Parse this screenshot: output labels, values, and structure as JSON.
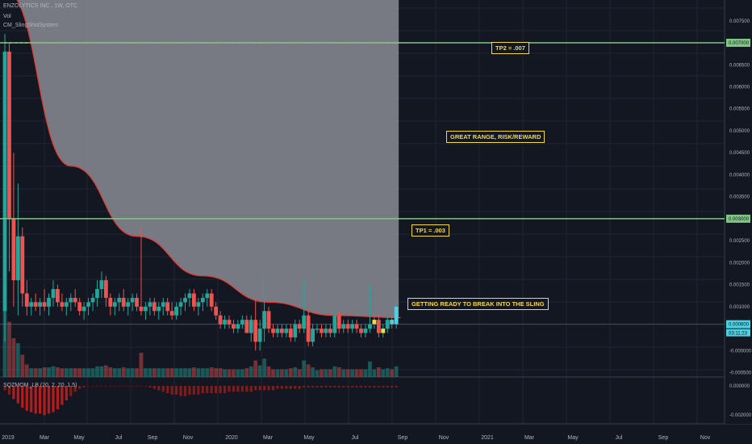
{
  "header": {
    "symbol_line": "ENZOLYTICS INC., 1W, OTC",
    "vol_label": "Vol",
    "indicator_label": "CM_SlingShotSystem",
    "momentum_label": "SQZMOM_LB (20, 2, 20, 1.5)"
  },
  "annotations": {
    "tp2": "TP2 = .007",
    "range": "GREAT RANGE, RISK/REWARD",
    "tp1": "TP1 = .003",
    "sling": "GETTING READY TO BREAK INTO THE SLING"
  },
  "price_axis": {
    "ticks": [
      "0.007500",
      "0.006500",
      "0.006000",
      "0.005500",
      "0.005000",
      "0.004500",
      "0.004000",
      "0.003500",
      "0.002500",
      "0.002000",
      "0.001500",
      "0.001000",
      "-0.000000",
      "-0.000500"
    ],
    "levels": [
      {
        "label": "0.007000",
        "color": "#81c784"
      },
      {
        "label": "0.003000",
        "color": "#81c784"
      },
      {
        "label": "0.000600",
        "color": "#4dd0e1"
      }
    ],
    "countdown": "03:11:23"
  },
  "momentum_axis": {
    "ticks": [
      "0.000000",
      "-0.002000"
    ]
  },
  "time_axis": {
    "labels": [
      "2019",
      "Mar",
      "May",
      "Jul",
      "Sep",
      "Nov",
      "2020",
      "Mar",
      "May",
      "Jul",
      "Sep",
      "Nov",
      "2021",
      "Mar",
      "May",
      "Jul",
      "Sep",
      "Nov"
    ]
  },
  "colors": {
    "background": "#131722",
    "up": "#26a69a",
    "down": "#ef5350",
    "level_line": "#81c784",
    "annotation": "#f5d942",
    "sling_fill": "#8a8c93",
    "ema_line": "#e53935"
  },
  "chart_data": {
    "type": "candlestick",
    "x_unit": "week",
    "ylim": [
      -0.0006,
      0.0079
    ],
    "levels": [
      0.007,
      0.003,
      0.0006
    ],
    "candles": [
      {
        "o": 0.0009,
        "h": 0.0072,
        "l": 0.0002,
        "c": 0.0068
      },
      {
        "o": 0.0068,
        "h": 0.007,
        "l": 0.0018,
        "c": 0.003
      },
      {
        "o": 0.003,
        "h": 0.0045,
        "l": 0.001,
        "c": 0.0016
      },
      {
        "o": 0.0016,
        "h": 0.0038,
        "l": 0.0008,
        "c": 0.0026
      },
      {
        "o": 0.0026,
        "h": 0.0028,
        "l": 0.001,
        "c": 0.0013
      },
      {
        "o": 0.0013,
        "h": 0.0016,
        "l": 0.0008,
        "c": 0.001
      },
      {
        "o": 0.001,
        "h": 0.0012,
        "l": 0.0008,
        "c": 0.0011
      },
      {
        "o": 0.0011,
        "h": 0.0013,
        "l": 0.0009,
        "c": 0.001
      },
      {
        "o": 0.001,
        "h": 0.0012,
        "l": 0.0008,
        "c": 0.0011
      },
      {
        "o": 0.0011,
        "h": 0.0014,
        "l": 0.0009,
        "c": 0.001
      },
      {
        "o": 0.001,
        "h": 0.0013,
        "l": 0.0008,
        "c": 0.0012
      },
      {
        "o": 0.0012,
        "h": 0.0016,
        "l": 0.001,
        "c": 0.0014
      },
      {
        "o": 0.0014,
        "h": 0.0015,
        "l": 0.001,
        "c": 0.0011
      },
      {
        "o": 0.0011,
        "h": 0.0013,
        "l": 0.0009,
        "c": 0.001
      },
      {
        "o": 0.001,
        "h": 0.0012,
        "l": 0.0008,
        "c": 0.0011
      },
      {
        "o": 0.0011,
        "h": 0.0013,
        "l": 0.0009,
        "c": 0.0012
      },
      {
        "o": 0.0012,
        "h": 0.0014,
        "l": 0.001,
        "c": 0.0011
      },
      {
        "o": 0.0011,
        "h": 0.0012,
        "l": 0.0008,
        "c": 0.0009
      },
      {
        "o": 0.0009,
        "h": 0.0011,
        "l": 0.0007,
        "c": 0.001
      },
      {
        "o": 0.001,
        "h": 0.0012,
        "l": 0.0008,
        "c": 0.0011
      },
      {
        "o": 0.0011,
        "h": 0.0013,
        "l": 0.0009,
        "c": 0.0012
      },
      {
        "o": 0.0012,
        "h": 0.0016,
        "l": 0.001,
        "c": 0.0014
      },
      {
        "o": 0.0014,
        "h": 0.0018,
        "l": 0.0012,
        "c": 0.0016
      },
      {
        "o": 0.0016,
        "h": 0.0017,
        "l": 0.001,
        "c": 0.0012
      },
      {
        "o": 0.0012,
        "h": 0.0013,
        "l": 0.0008,
        "c": 0.001
      },
      {
        "o": 0.001,
        "h": 0.0012,
        "l": 0.0008,
        "c": 0.0011
      },
      {
        "o": 0.0011,
        "h": 0.0013,
        "l": 0.0009,
        "c": 0.0012
      },
      {
        "o": 0.0012,
        "h": 0.0014,
        "l": 0.0009,
        "c": 0.001
      },
      {
        "o": 0.001,
        "h": 0.0012,
        "l": 0.0008,
        "c": 0.0011
      },
      {
        "o": 0.0011,
        "h": 0.0013,
        "l": 0.0009,
        "c": 0.0012
      },
      {
        "o": 0.0012,
        "h": 0.0013,
        "l": 0.0009,
        "c": 0.001
      },
      {
        "o": 0.001,
        "h": 0.0028,
        "l": 0.0008,
        "c": 0.0009
      },
      {
        "o": 0.0009,
        "h": 0.0011,
        "l": 0.0007,
        "c": 0.001
      },
      {
        "o": 0.001,
        "h": 0.0012,
        "l": 0.0008,
        "c": 0.0011
      },
      {
        "o": 0.0011,
        "h": 0.0012,
        "l": 0.0008,
        "c": 0.0009
      },
      {
        "o": 0.0009,
        "h": 0.0011,
        "l": 0.0007,
        "c": 0.001
      },
      {
        "o": 0.001,
        "h": 0.0012,
        "l": 0.0008,
        "c": 0.0011
      },
      {
        "o": 0.0011,
        "h": 0.0012,
        "l": 0.0008,
        "c": 0.0009
      },
      {
        "o": 0.0009,
        "h": 0.0011,
        "l": 0.0007,
        "c": 0.0008
      },
      {
        "o": 0.0008,
        "h": 0.0011,
        "l": 0.0007,
        "c": 0.001
      },
      {
        "o": 0.001,
        "h": 0.0012,
        "l": 0.0008,
        "c": 0.0011
      },
      {
        "o": 0.0011,
        "h": 0.0013,
        "l": 0.0009,
        "c": 0.0012
      },
      {
        "o": 0.0012,
        "h": 0.0014,
        "l": 0.001,
        "c": 0.0013
      },
      {
        "o": 0.0013,
        "h": 0.0014,
        "l": 0.0009,
        "c": 0.001
      },
      {
        "o": 0.001,
        "h": 0.0012,
        "l": 0.0008,
        "c": 0.0011
      },
      {
        "o": 0.0011,
        "h": 0.0013,
        "l": 0.0009,
        "c": 0.0012
      },
      {
        "o": 0.0012,
        "h": 0.0014,
        "l": 0.001,
        "c": 0.0013
      },
      {
        "o": 0.0013,
        "h": 0.0014,
        "l": 0.0009,
        "c": 0.001
      },
      {
        "o": 0.001,
        "h": 0.0011,
        "l": 0.0007,
        "c": 0.0008
      },
      {
        "o": 0.0008,
        "h": 0.0009,
        "l": 0.0005,
        "c": 0.0006
      },
      {
        "o": 0.0006,
        "h": 0.0008,
        "l": 0.0005,
        "c": 0.0007
      },
      {
        "o": 0.0007,
        "h": 0.0008,
        "l": 0.0005,
        "c": 0.0006
      },
      {
        "o": 0.0006,
        "h": 0.0007,
        "l": 0.0004,
        "c": 0.0005
      },
      {
        "o": 0.0005,
        "h": 0.0007,
        "l": 0.0004,
        "c": 0.0006
      },
      {
        "o": 0.0006,
        "h": 0.0008,
        "l": 0.0005,
        "c": 0.0007
      },
      {
        "o": 0.0007,
        "h": 0.0008,
        "l": 0.0004,
        "c": 0.0004
      },
      {
        "o": 0.0004,
        "h": 0.0008,
        "l": 0.0002,
        "c": 0.0007
      },
      {
        "o": 0.0007,
        "h": 0.0012,
        "l": 0.0,
        "c": 0.0002
      },
      {
        "o": 0.0002,
        "h": 0.0007,
        "l": 0.0,
        "c": 0.0005
      },
      {
        "o": 0.0005,
        "h": 0.0016,
        "l": 0.0002,
        "c": 0.0009
      },
      {
        "o": 0.0009,
        "h": 0.001,
        "l": 0.0004,
        "c": 0.0005
      },
      {
        "o": 0.0005,
        "h": 0.0006,
        "l": 0.0003,
        "c": 0.0004
      },
      {
        "o": 0.0004,
        "h": 0.0006,
        "l": 0.0003,
        "c": 0.0005
      },
      {
        "o": 0.0005,
        "h": 0.0006,
        "l": 0.0003,
        "c": 0.0004
      },
      {
        "o": 0.0004,
        "h": 0.0006,
        "l": 0.0003,
        "c": 0.0005
      },
      {
        "o": 0.0005,
        "h": 0.0006,
        "l": 0.0002,
        "c": 0.0003
      },
      {
        "o": 0.0003,
        "h": 0.0007,
        "l": 0.0002,
        "c": 0.0006
      },
      {
        "o": 0.0006,
        "h": 0.0007,
        "l": 0.0004,
        "c": 0.0005
      },
      {
        "o": 0.0005,
        "h": 0.0016,
        "l": 0.0004,
        "c": 0.0008
      },
      {
        "o": 0.0008,
        "h": 0.0009,
        "l": 0.0001,
        "c": 0.0002
      },
      {
        "o": 0.0002,
        "h": 0.0006,
        "l": 0.0001,
        "c": 0.0005
      },
      {
        "o": 0.0005,
        "h": 0.0006,
        "l": 0.0004,
        "c": 0.0005
      },
      {
        "o": 0.0005,
        "h": 0.0006,
        "l": 0.0003,
        "c": 0.0004
      },
      {
        "o": 0.0004,
        "h": 0.0006,
        "l": 0.0003,
        "c": 0.0005
      },
      {
        "o": 0.0005,
        "h": 0.0006,
        "l": 0.0003,
        "c": 0.0004
      },
      {
        "o": 0.0004,
        "h": 0.0009,
        "l": 0.0003,
        "c": 0.0008
      },
      {
        "o": 0.0008,
        "h": 0.0009,
        "l": 0.0004,
        "c": 0.0005
      },
      {
        "o": 0.0005,
        "h": 0.0007,
        "l": 0.0004,
        "c": 0.0006
      },
      {
        "o": 0.0006,
        "h": 0.0007,
        "l": 0.0004,
        "c": 0.0005
      },
      {
        "o": 0.0005,
        "h": 0.0007,
        "l": 0.0004,
        "c": 0.0006
      },
      {
        "o": 0.0006,
        "h": 0.0007,
        "l": 0.0004,
        "c": 0.0005
      },
      {
        "o": 0.0005,
        "h": 0.0006,
        "l": 0.0003,
        "c": 0.0004
      },
      {
        "o": 0.0004,
        "h": 0.0006,
        "l": 0.0003,
        "c": 0.0005
      },
      {
        "o": 0.0005,
        "h": 0.0015,
        "l": 0.0004,
        "c": 0.0006
      },
      {
        "o": 0.0006,
        "h": 0.0008,
        "l": 0.0005,
        "c": 0.0007
      },
      {
        "o": 0.0007,
        "h": 0.0008,
        "l": 0.0003,
        "c": 0.0004
      },
      {
        "o": 0.0004,
        "h": 0.0006,
        "l": 0.0003,
        "c": 0.0005
      },
      {
        "o": 0.0005,
        "h": 0.0008,
        "l": 0.0004,
        "c": 0.0007
      },
      {
        "o": 0.0007,
        "h": 0.0008,
        "l": 0.0005,
        "c": 0.0006
      },
      {
        "o": 0.0006,
        "h": 0.0011,
        "l": 0.0005,
        "c": 0.001
      }
    ],
    "sling_curve": {
      "x": [
        0,
        15,
        30,
        45,
        60,
        75,
        90
      ],
      "y": [
        0.0082,
        0.0042,
        0.0026,
        0.0017,
        0.0011,
        0.0008,
        0.00075
      ]
    },
    "momentum": [
      -0.0003,
      -0.0006,
      -0.0009,
      -0.0012,
      -0.0015,
      -0.0017,
      -0.0018,
      -0.0019,
      -0.0019,
      -0.002,
      -0.0019,
      -0.0018,
      -0.0016,
      -0.0013,
      -0.001,
      -0.0007,
      -0.0004,
      -0.0002,
      -0.0001,
      0,
      0,
      0,
      0,
      0,
      0,
      0,
      0,
      0,
      0,
      0,
      0,
      0,
      0,
      -0.0001,
      -0.0002,
      -0.0003,
      -0.0004,
      -0.0005,
      -0.0006,
      -0.0006,
      -0.0007,
      -0.0007,
      -0.0006,
      -0.0006,
      -0.0006,
      -0.0005,
      -0.0005,
      -0.0005,
      -0.0005,
      -0.0005,
      -0.0005,
      -0.0004,
      -0.0004,
      -0.0004,
      -0.0004,
      -0.0004,
      -0.0004,
      -0.0003,
      -0.0003,
      -0.0003,
      -0.0003,
      -0.0003,
      -0.0002,
      -0.0002,
      -0.0002,
      -0.0002,
      -0.0002,
      -0.0002,
      -0.0001,
      -0.0001,
      -0.0001,
      -0.0001,
      -0.0001,
      -0.0001,
      -0.0001,
      -0.0001,
      -0.0001,
      -0.0001,
      -0.0001,
      -0.0001,
      -0.0001,
      -0.0001,
      -0.0001,
      -0.0001,
      -0.0001,
      -0.0001,
      -0.0001,
      -0.0001,
      -0.0001,
      -0.0001
    ],
    "ylabel": "",
    "xlabel": ""
  }
}
